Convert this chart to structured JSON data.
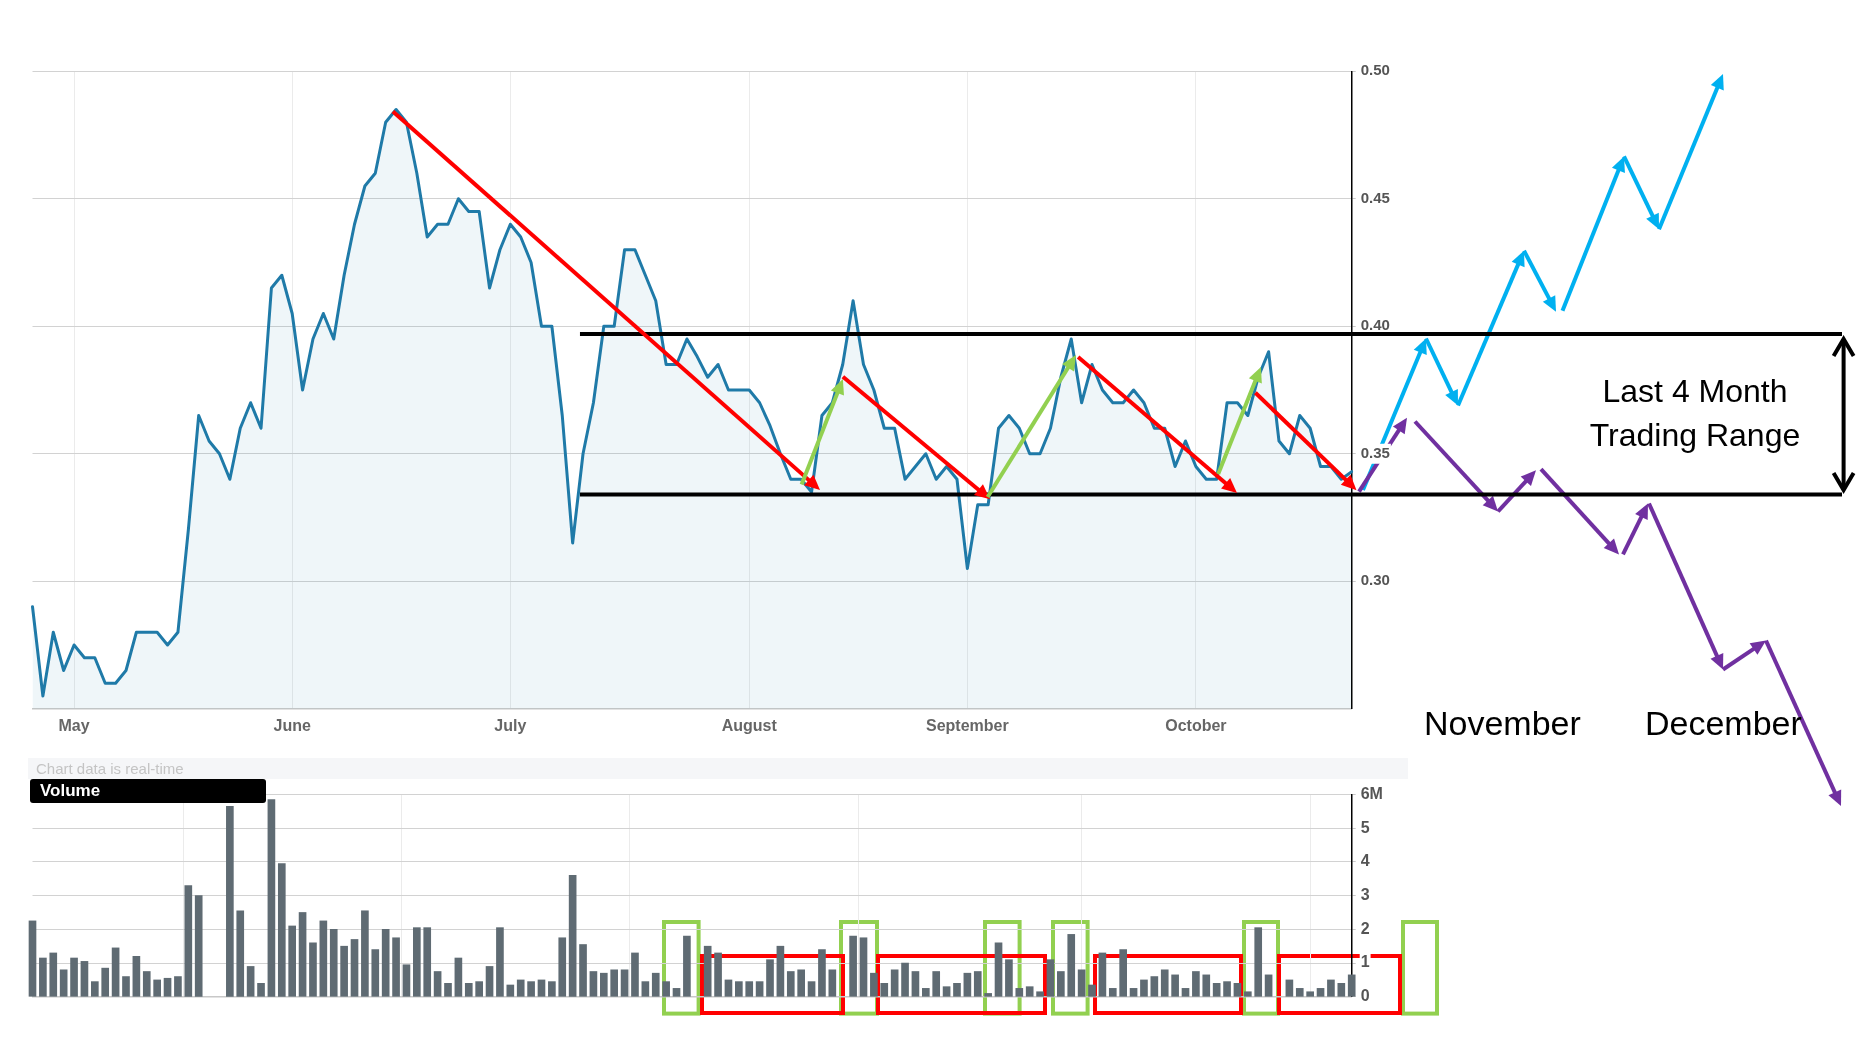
{
  "chart_data": [
    {
      "type": "area",
      "color": "#1f7aa8",
      "categories": [
        null,
        null,
        null,
        null,
        "May",
        null,
        null,
        null,
        null,
        null,
        null,
        null,
        null,
        null,
        null,
        null,
        null,
        null,
        null,
        null,
        null,
        null,
        null,
        null,
        null,
        "June",
        null,
        null,
        null,
        null,
        null,
        null,
        null,
        null,
        null,
        null,
        null,
        null,
        null,
        null,
        null,
        null,
        null,
        null,
        null,
        null,
        "July",
        null,
        null,
        null,
        null,
        null,
        null,
        null,
        null,
        null,
        null,
        null,
        null,
        null,
        null,
        null,
        null,
        null,
        null,
        null,
        null,
        null,
        null,
        "August",
        null,
        null,
        null,
        null,
        null,
        null,
        null,
        null,
        null,
        null,
        null,
        null,
        null,
        null,
        null,
        null,
        null,
        null,
        null,
        null,
        "September",
        null,
        null,
        null,
        null,
        null,
        null,
        null,
        null,
        null,
        null,
        null,
        null,
        null,
        null,
        null,
        null,
        null,
        null,
        null,
        null,
        null,
        "October",
        null,
        null,
        null,
        null,
        null,
        null,
        null,
        null,
        null,
        null,
        null,
        null,
        null,
        null,
        null
      ],
      "values": [
        0.29,
        0.255,
        0.28,
        0.265,
        0.275,
        0.27,
        0.27,
        0.26,
        0.26,
        0.265,
        0.28,
        0.28,
        0.28,
        0.275,
        0.28,
        0.32,
        0.365,
        0.355,
        0.35,
        0.34,
        0.36,
        0.37,
        0.36,
        0.415,
        0.42,
        0.405,
        0.375,
        0.395,
        0.405,
        0.395,
        0.42,
        0.44,
        0.455,
        0.46,
        0.48,
        0.485,
        0.48,
        0.46,
        0.435,
        0.44,
        0.44,
        0.45,
        0.445,
        0.445,
        0.415,
        0.43,
        0.44,
        0.435,
        0.425,
        0.4,
        0.4,
        0.365,
        0.315,
        0.35,
        0.37,
        0.4,
        0.4,
        0.43,
        0.43,
        0.42,
        0.41,
        0.385,
        0.385,
        0.395,
        0.388,
        0.38,
        0.385,
        0.375,
        0.375,
        0.375,
        0.37,
        0.361,
        0.35,
        0.34,
        0.34,
        0.335,
        0.365,
        0.37,
        0.385,
        0.41,
        0.385,
        0.375,
        0.36,
        0.36,
        0.34,
        0.345,
        0.35,
        0.34,
        0.345,
        0.34,
        0.305,
        0.33,
        0.33,
        0.36,
        0.365,
        0.36,
        0.35,
        0.35,
        0.36,
        0.38,
        0.395,
        0.37,
        0.385,
        0.375,
        0.37,
        0.37,
        0.375,
        0.37,
        0.36,
        0.36,
        0.345,
        0.355,
        0.345,
        0.34,
        0.34,
        0.37,
        0.37,
        0.365,
        0.38,
        0.39,
        0.355,
        0.35,
        0.365,
        0.36,
        0.345,
        0.345,
        0.34,
        0.343
      ],
      "ylim": [
        0.25,
        0.5
      ],
      "yticks": [
        {
          "value": 0.3,
          "label": "0.30"
        },
        {
          "value": 0.35,
          "label": "0.35"
        },
        {
          "value": 0.4,
          "label": "0.40"
        },
        {
          "value": 0.45,
          "label": "0.45"
        },
        {
          "value": 0.5,
          "label": "0.50"
        }
      ],
      "grid": true,
      "ref_lines": [
        {
          "axis": "y",
          "value": 0.397,
          "color": "#000000"
        },
        {
          "axis": "y",
          "value": 0.334,
          "color": "#000000"
        }
      ],
      "annotations": [
        "Last 4 Month Trading Range",
        "November",
        "December"
      ]
    },
    {
      "type": "bar",
      "title": "Volume",
      "color": "#5f6b73",
      "tick_labels": "y",
      "categories": [
        null,
        null,
        null,
        null,
        null,
        null,
        null,
        null,
        null,
        null,
        null,
        null,
        null,
        null,
        null,
        null,
        null,
        null,
        null,
        null,
        null,
        null,
        null,
        null,
        null,
        null,
        null,
        null,
        null,
        null,
        null,
        null,
        null,
        null,
        null,
        null,
        null,
        null,
        null,
        null,
        null,
        null,
        null,
        null,
        null,
        null,
        null,
        null,
        null,
        null,
        null,
        null,
        null,
        null,
        null,
        null,
        null,
        null,
        null,
        null,
        null,
        null,
        null,
        null,
        null,
        null,
        null,
        null,
        null,
        null,
        null,
        null,
        null,
        null,
        null,
        null,
        null,
        null,
        null,
        null,
        null,
        null,
        null,
        null,
        null,
        null,
        null,
        null,
        null,
        null,
        null,
        null,
        null,
        null,
        null,
        null,
        null,
        null,
        null,
        null,
        null,
        null,
        null,
        null,
        null,
        null,
        null,
        null,
        null,
        null,
        null,
        null,
        null,
        null,
        null,
        null,
        null,
        null,
        null,
        null,
        null,
        null,
        null,
        null,
        null,
        null,
        null,
        null
      ],
      "values": [
        2.25,
        1.15,
        1.3,
        0.8,
        1.15,
        1.05,
        0.45,
        0.85,
        1.45,
        0.6,
        1.2,
        0.75,
        0.5,
        0.55,
        0.6,
        3.3,
        3,
        null,
        null,
        5.65,
        2.55,
        0.9,
        0.4,
        5.85,
        3.95,
        2.1,
        2.5,
        1.6,
        2.25,
        2,
        1.5,
        1.7,
        2.55,
        1.4,
        2,
        1.75,
        0.95,
        2.05,
        2.05,
        0.75,
        0.4,
        1.15,
        0.4,
        0.45,
        0.9,
        2.05,
        0.35,
        0.5,
        0.45,
        0.5,
        0.45,
        1.75,
        3.6,
        1.55,
        0.75,
        0.7,
        0.8,
        0.8,
        1.3,
        0.45,
        0.7,
        0.45,
        0.25,
        1.8,
        null,
        1.5,
        1.3,
        0.5,
        0.45,
        0.45,
        0.45,
        1.1,
        1.5,
        0.75,
        0.8,
        0.45,
        1.4,
        0.8,
        null,
        1.8,
        1.75,
        0.7,
        0.4,
        0.8,
        1,
        0.75,
        0.25,
        0.75,
        0.3,
        0.4,
        0.7,
        0.75,
        0.1,
        1.6,
        1.1,
        0.25,
        0.3,
        0.15,
        1.1,
        0.75,
        1.85,
        0.8,
        0.35,
        1.3,
        0.25,
        1.4,
        0.25,
        0.5,
        0.6,
        0.8,
        0.65,
        0.25,
        0.75,
        0.65,
        0.4,
        0.45,
        0.4,
        0.15,
        2.05,
        0.65,
        null,
        0.5,
        0.25,
        0.15,
        0.25,
        0.5,
        0.4,
        0.65
      ],
      "ylim": [
        0,
        6
      ],
      "yticks": [
        0,
        1,
        2,
        3,
        4,
        5,
        {
          "value": 6,
          "label": "6M"
        }
      ],
      "grid": true,
      "annotations": [
        "Chart data is real-time"
      ]
    }
  ]
}
